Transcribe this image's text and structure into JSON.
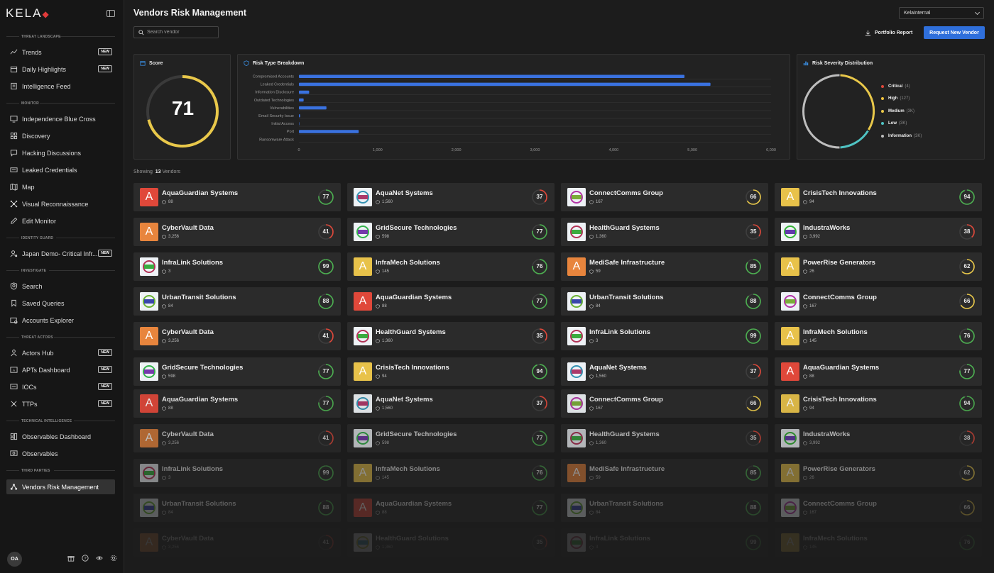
{
  "app": {
    "logo": "KELA",
    "title": "Vendors Risk Management"
  },
  "sidebar": {
    "sections": [
      {
        "label": "THREAT LANDSCAPE",
        "y": 49
      },
      {
        "label": "MONITOR",
        "y": 143
      },
      {
        "label": "IDENTITY GUARD",
        "y": 333
      },
      {
        "label": "INVESTIGATE",
        "y": 379
      },
      {
        "label": "THREAT ACTORS",
        "y": 473
      },
      {
        "label": "TECHNICAL INTELLIGENCE",
        "y": 591
      },
      {
        "label": "THIRD PARTIES",
        "y": 661
      }
    ],
    "items": [
      {
        "label": "Trends",
        "icon": "trend-icon",
        "badge": "NEW"
      },
      {
        "label": "Daily Highlights",
        "icon": "calendar-icon",
        "badge": "NEW"
      },
      {
        "label": "Intelligence Feed",
        "icon": "feed-icon",
        "badge": ""
      },
      {
        "label": "Independence Blue Cross",
        "icon": "monitor-icon",
        "badge": ""
      },
      {
        "label": "Discovery",
        "icon": "grid-icon",
        "badge": ""
      },
      {
        "label": "Hacking Discussions",
        "icon": "chat-icon",
        "badge": ""
      },
      {
        "label": "Leaked Credentials",
        "icon": "credentials-icon",
        "badge": ""
      },
      {
        "label": "Map",
        "icon": "map-icon",
        "badge": ""
      },
      {
        "label": "Visual Reconnaissance",
        "icon": "network-icon",
        "badge": ""
      },
      {
        "label": "Edit Monitor",
        "icon": "pencil-icon",
        "badge": ""
      },
      {
        "label": "Japan Demo- Critical Infr...",
        "icon": "user-lock-icon",
        "badge": "NEW"
      },
      {
        "label": "Search",
        "icon": "shield-search-icon",
        "badge": ""
      },
      {
        "label": "Saved Queries",
        "icon": "bookmark-icon",
        "badge": ""
      },
      {
        "label": "Accounts Explorer",
        "icon": "accounts-icon",
        "badge": ""
      },
      {
        "label": "Actors Hub",
        "icon": "actors-icon",
        "badge": "NEW"
      },
      {
        "label": "APTs Dashboard",
        "icon": "apt-icon",
        "badge": "NEW"
      },
      {
        "label": "IOCs",
        "icon": "ioc-icon",
        "badge": "NEW"
      },
      {
        "label": "TTPs",
        "icon": "ttp-icon",
        "badge": "NEW"
      },
      {
        "label": "Observables Dashboard",
        "icon": "dashboard-icon",
        "badge": ""
      },
      {
        "label": "Observables",
        "icon": "observables-icon",
        "badge": ""
      },
      {
        "label": "Vendors Risk Management",
        "icon": "vendors-icon",
        "badge": "",
        "active": true
      }
    ],
    "user_initials": "OA"
  },
  "header": {
    "tenant": "KelaInternal",
    "search_placeholder": "Search vendor",
    "portfolio_label": "Portfolio Report",
    "request_label": "Request New Vendor"
  },
  "score": {
    "title": "Score",
    "value": 71
  },
  "risk": {
    "title": "Risk Type Breakdown"
  },
  "severity": {
    "title": "Risk Severity Distribution",
    "items": [
      {
        "label": "Critical",
        "count": "(4)",
        "color": "#e0483a"
      },
      {
        "label": "High",
        "count": "(127)",
        "color": "#f0c23c"
      },
      {
        "label": "Medium",
        "count": "(3K)",
        "color": "#e9c84a"
      },
      {
        "label": "Low",
        "count": "(3K)",
        "color": "#4fc3c3"
      },
      {
        "label": "Information",
        "count": "(3K)",
        "color": "#bdbdbd"
      }
    ]
  },
  "chart_data": {
    "type": "bar",
    "orientation": "horizontal",
    "title": "Risk Type Breakdown",
    "categories": [
      "Compromised Accounts",
      "Leaked Credentials",
      "Information Disclosure",
      "Outdated Technologies",
      "Vulnerabilities",
      "Email Security Issue",
      "Initial Access",
      "Port",
      "Ransomware Attack"
    ],
    "values": [
      4900,
      5230,
      130,
      60,
      350,
      15,
      5,
      760,
      0
    ],
    "xlim": [
      0,
      6000
    ],
    "xticks": [
      "0",
      "1,000",
      "2,000",
      "3,000",
      "4,000",
      "5,000",
      "6,000"
    ],
    "grid": true,
    "color": "#3a72e0"
  },
  "vendors": {
    "showing_prefix": "Showing",
    "count": "13",
    "showing_suffix": "Vendors",
    "rows": [
      [
        {
          "name": "AquaGuardian Systems",
          "count": "88",
          "score": 77,
          "logo": "A",
          "bg": "#e0483a"
        },
        {
          "name": "AquaNet Systems",
          "count": "1,560",
          "score": 37,
          "logo": "img",
          "bg": ""
        },
        {
          "name": "ConnectComms Group",
          "count": "167",
          "score": 66,
          "logo": "img",
          "bg": ""
        },
        {
          "name": "CrisisTech Innovations",
          "count": "94",
          "score": 94,
          "logo": "A",
          "bg": "#e8c24a"
        }
      ],
      [
        {
          "name": "CyberVault Data",
          "count": "3,256",
          "score": 41,
          "logo": "A",
          "bg": "#e8853d"
        },
        {
          "name": "GridSecure Technologies",
          "count": "598",
          "score": 77,
          "logo": "img",
          "bg": ""
        },
        {
          "name": "HealthGuard Systems",
          "count": "1,360",
          "score": 35,
          "logo": "img",
          "bg": ""
        },
        {
          "name": "IndustraWorks",
          "count": "3,992",
          "score": 38,
          "logo": "img",
          "bg": ""
        }
      ],
      [
        {
          "name": "InfraLink Solutions",
          "count": "3",
          "score": 99,
          "logo": "img",
          "bg": ""
        },
        {
          "name": "InfraMech Solutions",
          "count": "145",
          "score": 76,
          "logo": "A",
          "bg": "#e8c24a"
        },
        {
          "name": "MediSafe Infrastructure",
          "count": "59",
          "score": 85,
          "logo": "A",
          "bg": "#e8853d"
        },
        {
          "name": "PowerRise Generators",
          "count": "26",
          "score": 62,
          "logo": "A",
          "bg": "#e8c24a"
        }
      ],
      [
        {
          "name": "UrbanTransit Solutions",
          "count": "84",
          "score": 88,
          "logo": "img",
          "bg": ""
        },
        {
          "name": "AquaGuardian Systems",
          "count": "88",
          "score": 77,
          "logo": "A",
          "bg": "#e0483a"
        },
        {
          "name": "UrbanTransit Solutions",
          "count": "84",
          "score": 88,
          "logo": "img",
          "bg": ""
        },
        {
          "name": "ConnectComms Group",
          "count": "167",
          "score": 66,
          "logo": "img",
          "bg": ""
        }
      ],
      [
        {
          "name": "CyberVault Data",
          "count": "3,256",
          "score": 41,
          "logo": "A",
          "bg": "#e8853d"
        },
        {
          "name": "HealthGuard Systems",
          "count": "1,360",
          "score": 35,
          "logo": "img",
          "bg": ""
        },
        {
          "name": "InfraLink Solutions",
          "count": "3",
          "score": 99,
          "logo": "img",
          "bg": ""
        },
        {
          "name": "InfraMech Solutions",
          "count": "145",
          "score": 76,
          "logo": "A",
          "bg": "#e8c24a"
        }
      ],
      [
        {
          "name": "GridSecure Technologies",
          "count": "598",
          "score": 77,
          "logo": "img",
          "bg": ""
        },
        {
          "name": "CrisisTech Innovations",
          "count": "94",
          "score": 94,
          "logo": "A",
          "bg": "#e8c24a"
        },
        {
          "name": "AquaNet Systems",
          "count": "1,560",
          "score": 37,
          "logo": "img",
          "bg": ""
        },
        {
          "name": "AquaGuardian Systems",
          "count": "88",
          "score": 77,
          "logo": "A",
          "bg": "#e0483a"
        }
      ],
      [
        {
          "name": "AquaGuardian Systems",
          "count": "88",
          "score": 77,
          "logo": "A",
          "bg": "#e0483a"
        },
        {
          "name": "AquaNet Systems",
          "count": "1,560",
          "score": 37,
          "logo": "img",
          "bg": ""
        },
        {
          "name": "ConnectComms Group",
          "count": "167",
          "score": 66,
          "logo": "img",
          "bg": ""
        },
        {
          "name": "CrisisTech Innovations",
          "count": "94",
          "score": 94,
          "logo": "A",
          "bg": "#e8c24a"
        }
      ],
      [
        {
          "name": "CyberVault Data",
          "count": "3,256",
          "score": 41,
          "logo": "A",
          "bg": "#e8853d"
        },
        {
          "name": "GridSecure Technologies",
          "count": "598",
          "score": 77,
          "logo": "img",
          "bg": ""
        },
        {
          "name": "HealthGuard Systems",
          "count": "1,360",
          "score": 35,
          "logo": "img",
          "bg": ""
        },
        {
          "name": "IndustraWorks",
          "count": "3,992",
          "score": 38,
          "logo": "img",
          "bg": ""
        }
      ],
      [
        {
          "name": "InfraLink Solutions",
          "count": "3",
          "score": 99,
          "logo": "img",
          "bg": ""
        },
        {
          "name": "InfraMech Solutions",
          "count": "145",
          "score": 76,
          "logo": "A",
          "bg": "#e8c24a"
        },
        {
          "name": "MediSafe Infrastructure",
          "count": "59",
          "score": 85,
          "logo": "A",
          "bg": "#e8853d"
        },
        {
          "name": "PowerRise Generators",
          "count": "26",
          "score": 62,
          "logo": "A",
          "bg": "#e8c24a"
        }
      ],
      [
        {
          "name": "UrbanTransit Solutions",
          "count": "84",
          "score": 88,
          "logo": "img",
          "bg": ""
        },
        {
          "name": "AquaGuardian Systems",
          "count": "88",
          "score": 77,
          "logo": "A",
          "bg": "#e0483a"
        },
        {
          "name": "UrbanTransit Solutions",
          "count": "84",
          "score": 88,
          "logo": "img",
          "bg": ""
        },
        {
          "name": "ConnectComms Group",
          "count": "167",
          "score": 66,
          "logo": "img",
          "bg": ""
        }
      ],
      [
        {
          "name": "CyberVault Data",
          "count": "3,256",
          "score": 41,
          "logo": "A",
          "bg": "#e8853d"
        },
        {
          "name": "HealthGuard Solutions",
          "count": "1,360",
          "score": 35,
          "logo": "img",
          "bg": ""
        },
        {
          "name": "InfraLink Solutions",
          "count": "3",
          "score": 99,
          "logo": "img",
          "bg": ""
        },
        {
          "name": "InfraMech Solutions",
          "count": "145",
          "score": 76,
          "logo": "A",
          "bg": "#e8c24a"
        }
      ]
    ]
  }
}
